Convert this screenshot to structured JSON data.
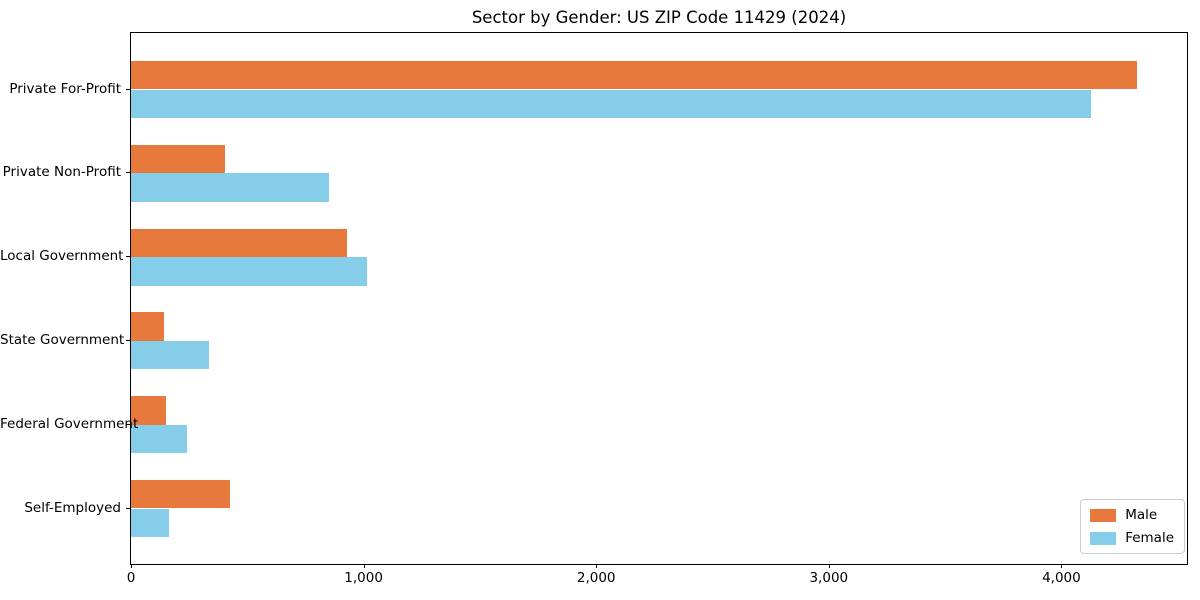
{
  "chart_data": {
    "type": "bar",
    "orientation": "horizontal",
    "title": "Sector by Gender: US ZIP Code 11429 (2024)",
    "categories": [
      "Private For-Profit",
      "Private Non-Profit",
      "Local Government",
      "State Government",
      "Federal Government",
      "Self-Employed"
    ],
    "series": [
      {
        "name": "Male",
        "color": "#e8793d",
        "values": [
          4325,
          405,
          930,
          140,
          150,
          425
        ]
      },
      {
        "name": "Female",
        "color": "#85cde9",
        "values": [
          4125,
          850,
          1015,
          335,
          240,
          165
        ]
      }
    ],
    "xlabel": "",
    "ylabel": "",
    "xlim": [
      0,
      4540
    ],
    "x_ticks": [
      {
        "value": 0,
        "label": "0"
      },
      {
        "value": 1000,
        "label": "1,000"
      },
      {
        "value": 2000,
        "label": "2,000"
      },
      {
        "value": 3000,
        "label": "3,000"
      },
      {
        "value": 4000,
        "label": "4,000"
      }
    ],
    "grid": false,
    "legend_position": "lower right",
    "colors": {
      "male": "#e8793d",
      "female": "#85cde9",
      "spine": "#000000",
      "legend_border": "#cccccc"
    }
  }
}
